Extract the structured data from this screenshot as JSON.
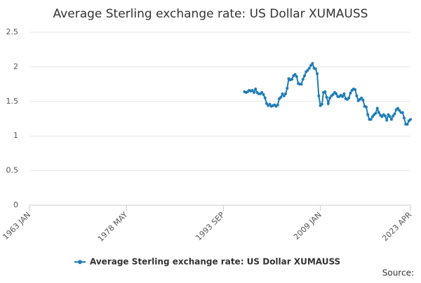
{
  "chart_data": {
    "type": "line",
    "title": "Average Sterling exchange rate: US Dollar XUMAUSS",
    "source": "Source:",
    "xlim": [
      1963,
      2023.25
    ],
    "xticks": [
      {
        "value": 1963,
        "label": "1963 JAN"
      },
      {
        "value": 1978.333,
        "label": "1978 MAY"
      },
      {
        "value": 1993.667,
        "label": "1993 SEP"
      },
      {
        "value": 2009,
        "label": "2009 JAN"
      },
      {
        "value": 2023.25,
        "label": "2023 APR"
      }
    ],
    "ylim": [
      0,
      2.5
    ],
    "yticks": [
      0,
      0.5,
      1,
      1.5,
      2,
      2.5
    ],
    "grid": true,
    "legend": "bottom",
    "x": [
      1997,
      1997.25,
      1997.5,
      1997.75,
      1998,
      1998.25,
      1998.5,
      1998.75,
      1999,
      1999.25,
      1999.5,
      1999.75,
      2000,
      2000.25,
      2000.5,
      2000.75,
      2001,
      2001.25,
      2001.5,
      2001.75,
      2002,
      2002.25,
      2002.5,
      2002.75,
      2003,
      2003.25,
      2003.5,
      2003.75,
      2004,
      2004.25,
      2004.5,
      2004.75,
      2005,
      2005.25,
      2005.5,
      2005.75,
      2006,
      2006.25,
      2006.5,
      2006.75,
      2007,
      2007.25,
      2007.5,
      2007.75,
      2008,
      2008.25,
      2008.5,
      2008.75,
      2009,
      2009.25,
      2009.5,
      2009.75,
      2010,
      2010.25,
      2010.5,
      2010.75,
      2011,
      2011.25,
      2011.5,
      2011.75,
      2012,
      2012.25,
      2012.5,
      2012.75,
      2013,
      2013.25,
      2013.5,
      2013.75,
      2014,
      2014.25,
      2014.5,
      2014.75,
      2015,
      2015.25,
      2015.5,
      2015.75,
      2016,
      2016.25,
      2016.5,
      2016.75,
      2017,
      2017.25,
      2017.5,
      2017.75,
      2018,
      2018.25,
      2018.5,
      2018.75,
      2019,
      2019.25,
      2019.5,
      2019.75,
      2020,
      2020.25,
      2020.5,
      2020.75,
      2021,
      2021.25,
      2021.5,
      2021.75,
      2022,
      2022.25,
      2022.5,
      2022.75,
      2023,
      2023.25
    ],
    "series": [
      {
        "name": "Average Sterling exchange rate: US Dollar XUMAUSS",
        "color": "#1e7db8",
        "values": [
          1.64,
          1.63,
          1.64,
          1.66,
          1.65,
          1.66,
          1.63,
          1.68,
          1.63,
          1.61,
          1.61,
          1.63,
          1.6,
          1.55,
          1.47,
          1.44,
          1.46,
          1.43,
          1.44,
          1.45,
          1.43,
          1.45,
          1.54,
          1.56,
          1.61,
          1.58,
          1.61,
          1.69,
          1.83,
          1.81,
          1.82,
          1.87,
          1.89,
          1.86,
          1.76,
          1.75,
          1.75,
          1.82,
          1.87,
          1.93,
          1.95,
          1.98,
          2.02,
          2.05,
          1.98,
          1.97,
          1.9,
          1.58,
          1.44,
          1.46,
          1.63,
          1.64,
          1.56,
          1.47,
          1.55,
          1.58,
          1.6,
          1.63,
          1.61,
          1.57,
          1.57,
          1.59,
          1.57,
          1.61,
          1.54,
          1.53,
          1.55,
          1.62,
          1.66,
          1.68,
          1.67,
          1.58,
          1.51,
          1.53,
          1.55,
          1.52,
          1.43,
          1.42,
          1.31,
          1.24,
          1.24,
          1.28,
          1.31,
          1.33,
          1.4,
          1.34,
          1.3,
          1.28,
          1.31,
          1.29,
          1.23,
          1.31,
          1.28,
          1.24,
          1.29,
          1.32,
          1.38,
          1.4,
          1.37,
          1.34,
          1.34,
          1.26,
          1.17,
          1.17,
          1.22,
          1.24
        ]
      }
    ]
  }
}
